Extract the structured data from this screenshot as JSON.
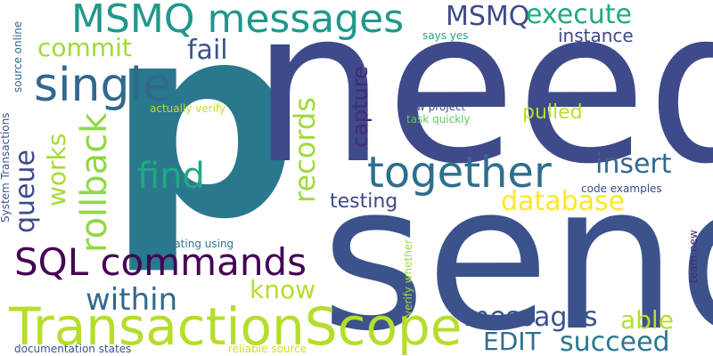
{
  "words": [
    {
      "id": "p",
      "text": "p",
      "color": "#2a788e"
    },
    {
      "id": "need",
      "text": "need",
      "color": "#3e4a89"
    },
    {
      "id": "send",
      "text": "send",
      "color": "#3b528b"
    },
    {
      "id": "transactionscope",
      "text": "TransactionScope",
      "color": "#b5de2b"
    },
    {
      "id": "msmq-messages",
      "text": "MSMQ messages",
      "color": "#1f988b"
    },
    {
      "id": "single",
      "text": "single",
      "color": "#31688e"
    },
    {
      "id": "together",
      "text": "together",
      "color": "#2e6e8e"
    },
    {
      "id": "sql-commands",
      "text": "SQL commands",
      "color": "#440154"
    },
    {
      "id": "find",
      "text": "find",
      "color": "#22a884"
    },
    {
      "id": "queue",
      "text": "queue",
      "color": "#3e4a89"
    },
    {
      "id": "rollback",
      "text": "rollback",
      "color": "#90d743"
    },
    {
      "id": "works",
      "text": "works",
      "color": "#a5db36"
    },
    {
      "id": "within",
      "text": "within",
      "color": "#31688e"
    },
    {
      "id": "commit",
      "text": "commit",
      "color": "#a0da39"
    },
    {
      "id": "fail",
      "text": "fail",
      "color": "#3b528b"
    },
    {
      "id": "msmq",
      "text": "MSMQ",
      "color": "#3e4a89"
    },
    {
      "id": "execute",
      "text": "execute",
      "color": "#22a884"
    },
    {
      "id": "instance",
      "text": "instance",
      "color": "#3e4a89"
    },
    {
      "id": "records",
      "text": "records",
      "color": "#a0da39"
    },
    {
      "id": "capture",
      "text": "capture",
      "color": "#482878"
    },
    {
      "id": "insert",
      "text": "insert",
      "color": "#31688e"
    },
    {
      "id": "pulled",
      "text": "pulled",
      "color": "#bddf26"
    },
    {
      "id": "database",
      "text": "database",
      "color": "#fde725"
    },
    {
      "id": "testing",
      "text": "testing",
      "color": "#3e4a89"
    },
    {
      "id": "know",
      "text": "know",
      "color": "#b5de2b"
    },
    {
      "id": "messages",
      "text": "messages",
      "color": "#3b528b"
    },
    {
      "id": "able",
      "text": "able",
      "color": "#b5de2b"
    },
    {
      "id": "edit",
      "text": "EDIT",
      "color": "#2e6e8e"
    },
    {
      "id": "succeed",
      "text": "succeed",
      "color": "#2a788e"
    },
    {
      "id": "source-online",
      "text": "source online",
      "color": "#31688e"
    },
    {
      "id": "system-transactions",
      "text": "System Transactions",
      "color": "#3b528b"
    },
    {
      "id": "actually-verify",
      "text": "actually verify",
      "color": "#c2df23"
    },
    {
      "id": "new-project",
      "text": "new project",
      "color": "#3b528b"
    },
    {
      "id": "task-quickly",
      "text": "task quickly",
      "color": "#5ec962"
    },
    {
      "id": "says-yes",
      "text": "says yes",
      "color": "#21a685"
    },
    {
      "id": "code-examples",
      "text": "code examples",
      "color": "#3e4a89"
    },
    {
      "id": "investigating-using",
      "text": "investigating using",
      "color": "#2a788e"
    },
    {
      "id": "verify-whether",
      "text": "verify whether",
      "color": "#a0da39"
    },
    {
      "id": "team-new",
      "text": "team new",
      "color": "#482878"
    },
    {
      "id": "documentation-states",
      "text": "documentation states",
      "color": "#3b528b"
    },
    {
      "id": "reliable-source",
      "text": "reliable source",
      "color": "#d0e11c"
    }
  ]
}
